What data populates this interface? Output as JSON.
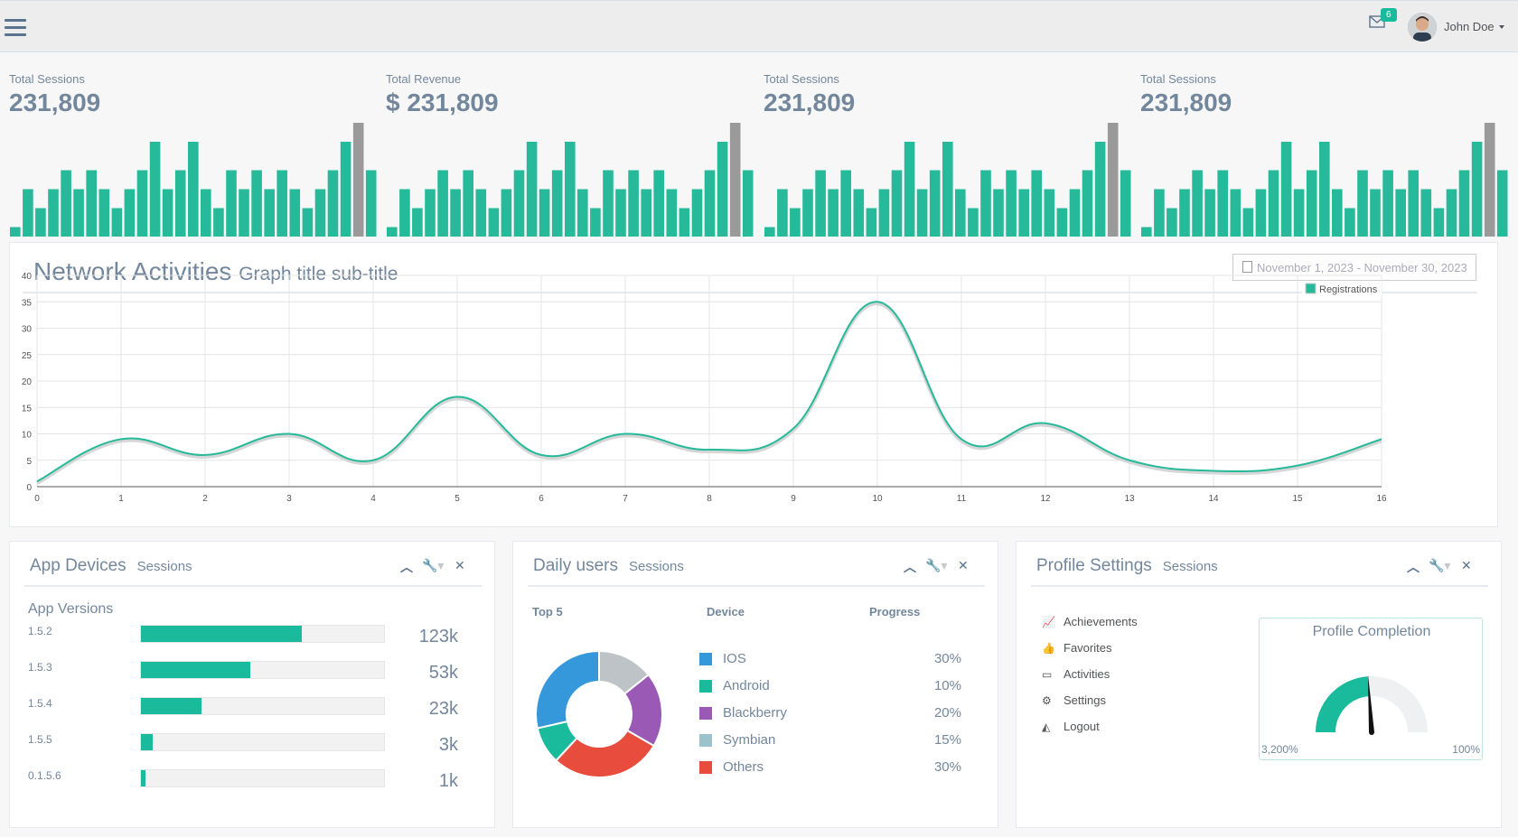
{
  "header": {
    "notification_count": "6",
    "user_name": "John Doe"
  },
  "tiles": [
    {
      "label": "Total Sessions",
      "value": "231,809"
    },
    {
      "label": "Total Revenue",
      "value": "$ 231,809"
    },
    {
      "label": "Total Sessions",
      "value": "231,809"
    },
    {
      "label": "Total Sessions",
      "value": "231,809"
    }
  ],
  "sparkline": {
    "values": [
      1,
      5,
      3,
      5,
      7,
      5,
      7,
      5,
      3,
      5,
      7,
      10,
      5,
      7,
      10,
      5,
      3,
      7,
      5,
      7,
      5,
      7,
      5,
      3,
      5,
      7,
      10,
      12,
      7
    ],
    "highlight_index": 27,
    "bar_color": "#26B99A",
    "highlight_color": "#9a9a9a"
  },
  "network": {
    "title": "Network Activities",
    "subtitle": "Graph title sub-title",
    "date_range": "November 1, 2023 - November 30, 2023"
  },
  "chart_data": {
    "type": "line",
    "x": [
      0,
      1,
      2,
      3,
      4,
      5,
      6,
      7,
      8,
      9,
      10,
      11,
      12,
      13,
      14,
      15,
      16
    ],
    "series": [
      {
        "name": "Registrations",
        "values": [
          1,
          9,
          6,
          10,
          5,
          17,
          6,
          10,
          7,
          11,
          35,
          9,
          12,
          5,
          3,
          4,
          9
        ],
        "color": "#26B99A"
      }
    ],
    "xlim": [
      0,
      16
    ],
    "ylim": [
      0,
      40
    ],
    "yticks": [
      0,
      5,
      10,
      15,
      20,
      25,
      30,
      35,
      40
    ],
    "xticks": [
      0,
      1,
      2,
      3,
      4,
      5,
      6,
      7,
      8,
      9,
      10,
      11,
      12,
      13,
      14,
      15,
      16
    ],
    "grid": true,
    "legend": "top-right"
  },
  "app_devices": {
    "title": "App Devices",
    "subtitle": "Sessions",
    "heading": "App Versions",
    "rows": [
      {
        "label": "1.5.2",
        "value": "123k",
        "fraction": 0.66
      },
      {
        "label": "1.5.3",
        "value": "53k",
        "fraction": 0.45
      },
      {
        "label": "1.5.4",
        "value": "23k",
        "fraction": 0.25
      },
      {
        "label": "1.5.5",
        "value": "3k",
        "fraction": 0.05
      },
      {
        "label": "0.1.5.6",
        "value": "1k",
        "fraction": 0.02
      }
    ]
  },
  "daily_users": {
    "title": "Daily users",
    "subtitle": "Sessions",
    "col_top": "Top 5",
    "col_device": "Device",
    "col_progress": "Progress",
    "items": [
      {
        "name": "IOS",
        "percent": "30%",
        "color": "#3498DB",
        "value": 30
      },
      {
        "name": "Android",
        "percent": "10%",
        "color": "#1ABB9C",
        "value": 10
      },
      {
        "name": "Blackberry",
        "percent": "20%",
        "color": "#9B59B6",
        "value": 20
      },
      {
        "name": "Symbian",
        "percent": "15%",
        "color": "#9CC2CB",
        "value": 15
      },
      {
        "name": "Others",
        "percent": "30%",
        "color": "#E74C3C",
        "value": 30
      }
    ],
    "donut_order": [
      "Symbian",
      "Blackberry",
      "Others",
      "Android",
      "IOS"
    ],
    "donut_colors": {
      "Symbian": "#BDC3C7"
    }
  },
  "profile": {
    "title": "Profile Settings",
    "subtitle": "Sessions",
    "menu": [
      {
        "label": "Achievements",
        "icon": "line-chart-icon"
      },
      {
        "label": "Favorites",
        "icon": "thumbs-up-icon"
      },
      {
        "label": "Activities",
        "icon": "calendar-icon"
      },
      {
        "label": "Settings",
        "icon": "gear-icon"
      },
      {
        "label": "Logout",
        "icon": "area-chart-icon"
      }
    ],
    "gauge_title": "Profile Completion",
    "gauge_min": "3,200%",
    "gauge_max": "100%",
    "gauge_fraction": 0.48
  }
}
